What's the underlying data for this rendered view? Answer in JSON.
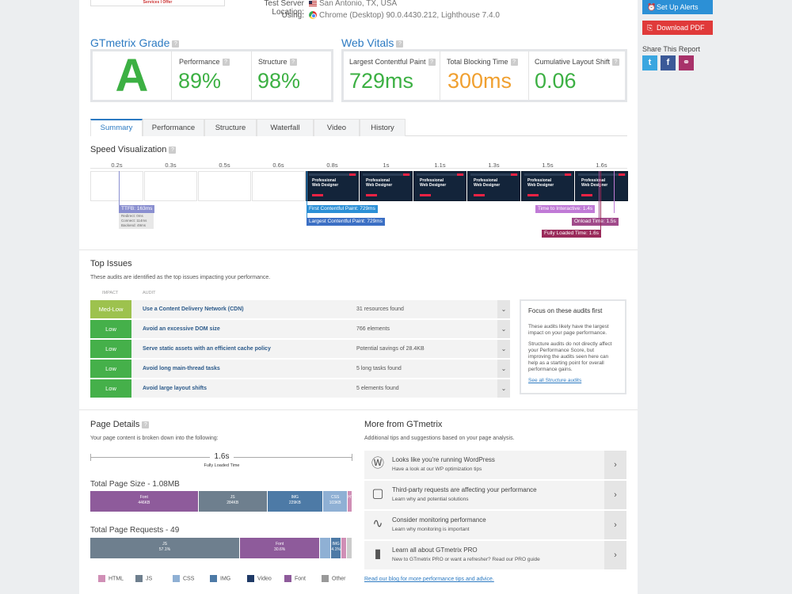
{
  "logo_text": "Services I Offer",
  "test_info": {
    "location_label": "Test Server Location:",
    "location_value": "San Antonio, TX, USA",
    "using_label": "Using:",
    "using_value": "Chrome (Desktop) 90.0.4430.212, Lighthouse 7.4.0"
  },
  "gtmetrix_grade": {
    "title": "GTmetrix Grade",
    "grade": "A",
    "performance_label": "Performance",
    "performance_value": "89%",
    "structure_label": "Structure",
    "structure_value": "98%"
  },
  "web_vitals": {
    "title": "Web Vitals",
    "lcp_label": "Largest Contentful Paint",
    "lcp_value": "729ms",
    "tbt_label": "Total Blocking Time",
    "tbt_value": "300ms",
    "cls_label": "Cumulative Layout Shift",
    "cls_value": "0.06"
  },
  "tabs": [
    "Summary",
    "Performance",
    "Structure",
    "Waterfall",
    "Video",
    "History"
  ],
  "speed_viz": {
    "title": "Speed Visualization",
    "times": [
      "0.2s",
      "0.3s",
      "0.5s",
      "0.6s",
      "0.8s",
      "1s",
      "1.1s",
      "1.3s",
      "1.5s",
      "1.6s"
    ],
    "frame_text_line1": "Professional",
    "frame_text_line2": "Web Designer",
    "ttfb": "TTFB: 163ms",
    "ttfb_redirect": "Redirect: 0ms",
    "ttfb_connect": "Connect: 114ms",
    "ttfb_backend": "Backend: 49ms",
    "fcp": "First Contentful Paint: 729ms",
    "lcp": "Largest Contentful Paint: 729ms",
    "tti": "Time to Interactive: 1.4s",
    "onload": "Onload Time: 1.5s",
    "fully_loaded": "Fully Loaded Time: 1.6s"
  },
  "top_issues": {
    "title": "Top Issues",
    "description": "These audits are identified as the top issues impacting your performance.",
    "col_impact": "IMPACT",
    "col_audit": "AUDIT",
    "rows": [
      {
        "impact": "Med-Low",
        "audit": "Use a Content Delivery Network (CDN)",
        "result": "31 resources found"
      },
      {
        "impact": "Low",
        "audit": "Avoid an excessive DOM size",
        "result": "766 elements"
      },
      {
        "impact": "Low",
        "audit": "Serve static assets with an efficient cache policy",
        "result": "Potential savings of 28.4KB"
      },
      {
        "impact": "Low",
        "audit": "Avoid long main-thread tasks",
        "result": "5 long tasks found"
      },
      {
        "impact": "Low",
        "audit": "Avoid large layout shifts",
        "result": "5 elements found"
      }
    ],
    "focus_title": "Focus on these audits first",
    "focus_p1": "These audits likely have the largest impact on your page performance.",
    "focus_p2": "Structure audits do not directly affect your Performance Score, but improving the audits seen here can help as a starting point for overall performance gains.",
    "focus_link": "See all Structure audits"
  },
  "page_details": {
    "title": "Page Details",
    "description": "Your page content is broken down into the following:",
    "fully_loaded_value": "1.6s",
    "fully_loaded_label": "Fully Loaded Time",
    "size_title": "Total Page Size - 1.08MB",
    "size_segments": [
      {
        "name": "Font",
        "value": "446KB",
        "fraction": 0.413,
        "color": "#8e5b9b"
      },
      {
        "name": "JS",
        "value": "284KB",
        "fraction": 0.263,
        "color": "#6e7f8e"
      },
      {
        "name": "IMG",
        "value": "229KB",
        "fraction": 0.212,
        "color": "#4d7aa6"
      },
      {
        "name": "CSS",
        "value": "103KB",
        "fraction": 0.095,
        "color": "#8fb0d4"
      },
      {
        "name": "HTML",
        "value": "",
        "fraction": 0.017,
        "color": "#d08fb6"
      }
    ],
    "requests_title": "Total Page Requests - 49",
    "request_segments": [
      {
        "name": "JS",
        "value": "57.1%",
        "fraction": 0.571,
        "color": "#6e7f8e"
      },
      {
        "name": "Font",
        "value": "30.6%",
        "fraction": 0.306,
        "color": "#8e5b9b"
      },
      {
        "name": "",
        "value": "",
        "fraction": 0.041,
        "color": "#8fb0d4"
      },
      {
        "name": "IMG",
        "value": "4.1%",
        "fraction": 0.041,
        "color": "#4d7aa6"
      },
      {
        "name": "",
        "value": "",
        "fraction": 0.02,
        "color": "#d08fb6"
      },
      {
        "name": "",
        "value": "",
        "fraction": 0.021,
        "color": "#ccc"
      }
    ],
    "legend": [
      {
        "name": "HTML",
        "color": "#d08fb6"
      },
      {
        "name": "JS",
        "color": "#6e7f8e"
      },
      {
        "name": "CSS",
        "color": "#8fb0d4"
      },
      {
        "name": "IMG",
        "color": "#4d7aa6"
      },
      {
        "name": "Video",
        "color": "#1f3a66"
      },
      {
        "name": "Font",
        "color": "#8e5b9b"
      },
      {
        "name": "Other",
        "color": "#999"
      }
    ]
  },
  "more": {
    "title": "More from GTmetrix",
    "description": "Additional tips and suggestions based on your page analysis.",
    "items": [
      {
        "title": "Looks like you're running WordPress",
        "sub": "Have a look at our WP optimization tips",
        "icon": "wordpress-icon"
      },
      {
        "title": "Third-party requests are affecting your performance",
        "sub": "Learn why and potential solutions",
        "icon": "third-party-icon"
      },
      {
        "title": "Consider monitoring performance",
        "sub": "Learn why monitoring is important",
        "icon": "pulse-icon"
      },
      {
        "title": "Learn all about GTmetrix PRO",
        "sub": "New to GTmetrix PRO or want a refresher? Read our PRO guide",
        "icon": "book-icon"
      }
    ],
    "blog_link": "Read our blog for more performance tips and advice."
  },
  "rail": {
    "alerts_label": "Set Up Alerts",
    "pdf_label": "Download PDF",
    "share_title": "Share This Report",
    "alerts_color": "#2c90d6",
    "pdf_color": "#e03a3a"
  }
}
